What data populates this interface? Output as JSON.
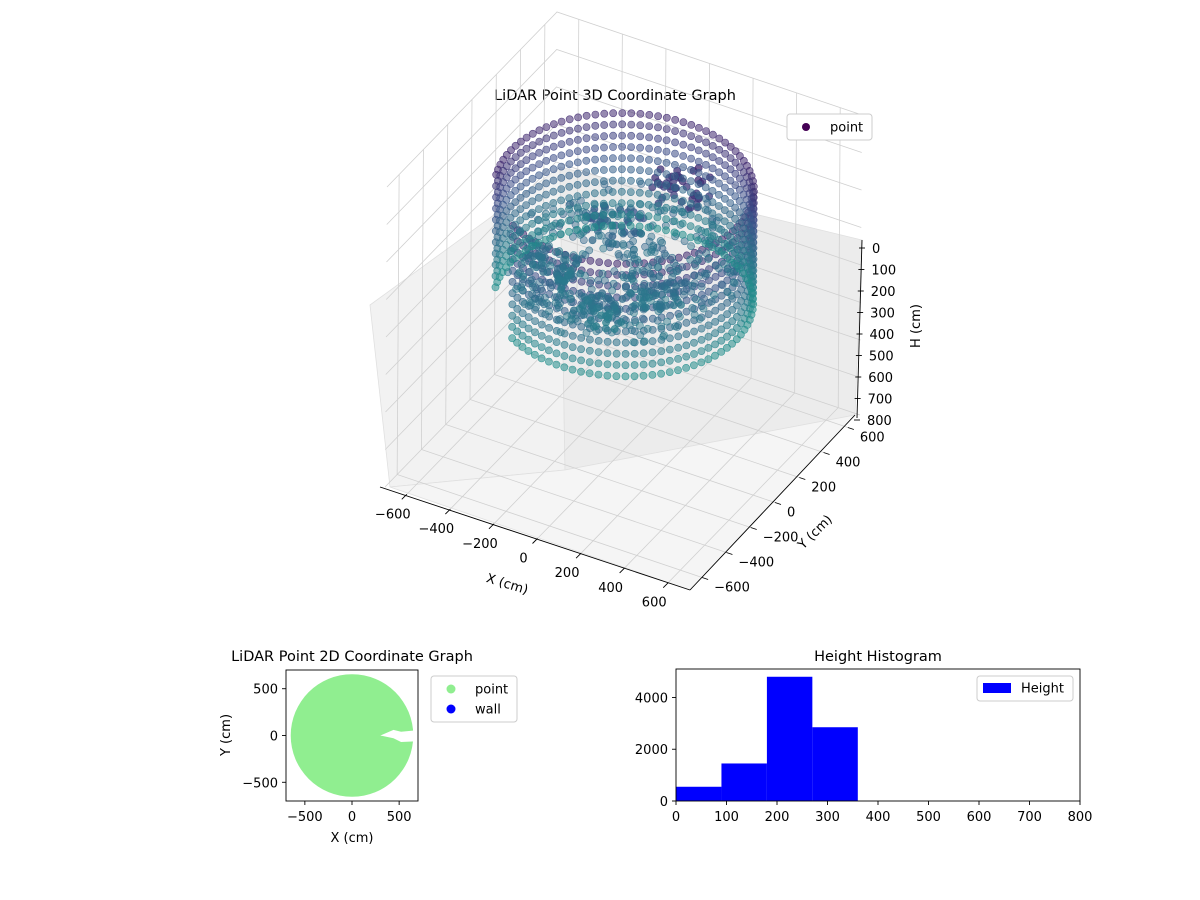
{
  "chart_data": [
    {
      "type": "scatter3d",
      "title": "LiDAR Point 3D Coordinate Graph",
      "xlabel": "X (cm)",
      "ylabel": "Y (cm)",
      "zlabel": "H (cm)",
      "xlim": [
        -700,
        700
      ],
      "ylim": [
        -700,
        700
      ],
      "zlim": [
        800,
        0
      ],
      "x_ticks": [
        -600,
        -400,
        -200,
        0,
        200,
        400,
        600
      ],
      "y_ticks": [
        -600,
        -400,
        -200,
        0,
        200,
        400,
        600
      ],
      "z_ticks": [
        0,
        100,
        200,
        300,
        400,
        500,
        600,
        700,
        800
      ],
      "legend": {
        "placement": "top-right",
        "entries": [
          "point"
        ]
      },
      "grid": true,
      "colormap": "viridis",
      "series": [
        {
          "name": "point",
          "color": "#440154",
          "ring_radius": 520,
          "ring_gap_start_deg": 200,
          "ring_gap_end_deg": 240,
          "ring_height_range": [
            100,
            400
          ],
          "floor_height": 300,
          "clusters": [
            {
              "x": 150,
              "y": 200,
              "h": 130
            },
            {
              "x": -100,
              "y": 100,
              "h": 250
            },
            {
              "x": 200,
              "y": -100,
              "h": 300
            },
            {
              "x": -250,
              "y": -150,
              "h": 300
            },
            {
              "x": 50,
              "y": -300,
              "h": 320
            }
          ]
        }
      ]
    },
    {
      "type": "scatter",
      "title": "LiDAR Point 2D Coordinate Graph",
      "xlabel": "X (cm)",
      "ylabel": "Y (cm)",
      "xlim": [
        -700,
        700
      ],
      "ylim": [
        -700,
        700
      ],
      "x_ticks": [
        -500,
        0,
        500
      ],
      "y_ticks": [
        500,
        0,
        -500
      ],
      "legend": {
        "placement": "outside-right",
        "entries": [
          "point",
          "wall"
        ]
      },
      "series": [
        {
          "name": "point",
          "color": "#90ee90",
          "disc_radius": 650,
          "notch": {
            "x_from": 300,
            "y_from": -60,
            "y_to": 60
          }
        },
        {
          "name": "wall",
          "color": "#0000ff",
          "points": []
        }
      ]
    },
    {
      "type": "bar",
      "title": "Height Histogram",
      "xlabel": "",
      "ylabel": "",
      "xlim": [
        0,
        800
      ],
      "ylim": [
        0,
        5100
      ],
      "x_ticks": [
        0,
        100,
        200,
        300,
        400,
        500,
        600,
        700,
        800
      ],
      "y_ticks": [
        0,
        2000,
        4000
      ],
      "legend": {
        "placement": "top-right",
        "entries": [
          "Height"
        ]
      },
      "series": [
        {
          "name": "Height",
          "color": "#0000ff",
          "bins": [
            {
              "from": 0,
              "to": 90,
              "value": 550
            },
            {
              "from": 90,
              "to": 180,
              "value": 1450
            },
            {
              "from": 180,
              "to": 270,
              "value": 4800
            },
            {
              "from": 270,
              "to": 360,
              "value": 2850
            }
          ]
        }
      ]
    }
  ]
}
